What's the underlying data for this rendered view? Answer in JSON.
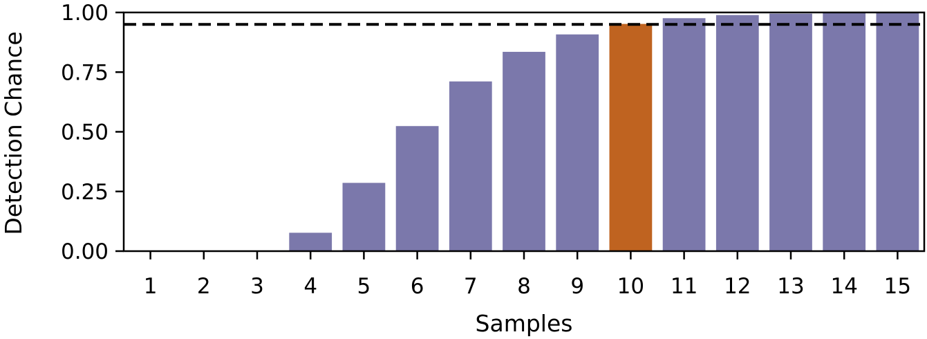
{
  "chart_data": {
    "type": "bar",
    "categories": [
      "1",
      "2",
      "3",
      "4",
      "5",
      "6",
      "7",
      "8",
      "9",
      "10",
      "11",
      "12",
      "13",
      "14",
      "15"
    ],
    "values": [
      0.0,
      0.0,
      0.0,
      0.077,
      0.286,
      0.524,
      0.711,
      0.835,
      0.908,
      0.952,
      0.976,
      0.989,
      0.995,
      0.998,
      0.999
    ],
    "highlight_index": 9,
    "threshold": 0.95,
    "xlabel": "Samples",
    "ylabel": "Detection Chance",
    "ylim": [
      0,
      1
    ],
    "yticks": [
      "0.00",
      "0.25",
      "0.50",
      "0.75",
      "1.00"
    ],
    "grid": false,
    "colors": {
      "bar": "#7b78ab",
      "highlight": "#bf6320",
      "threshold_line": "#000000"
    }
  }
}
